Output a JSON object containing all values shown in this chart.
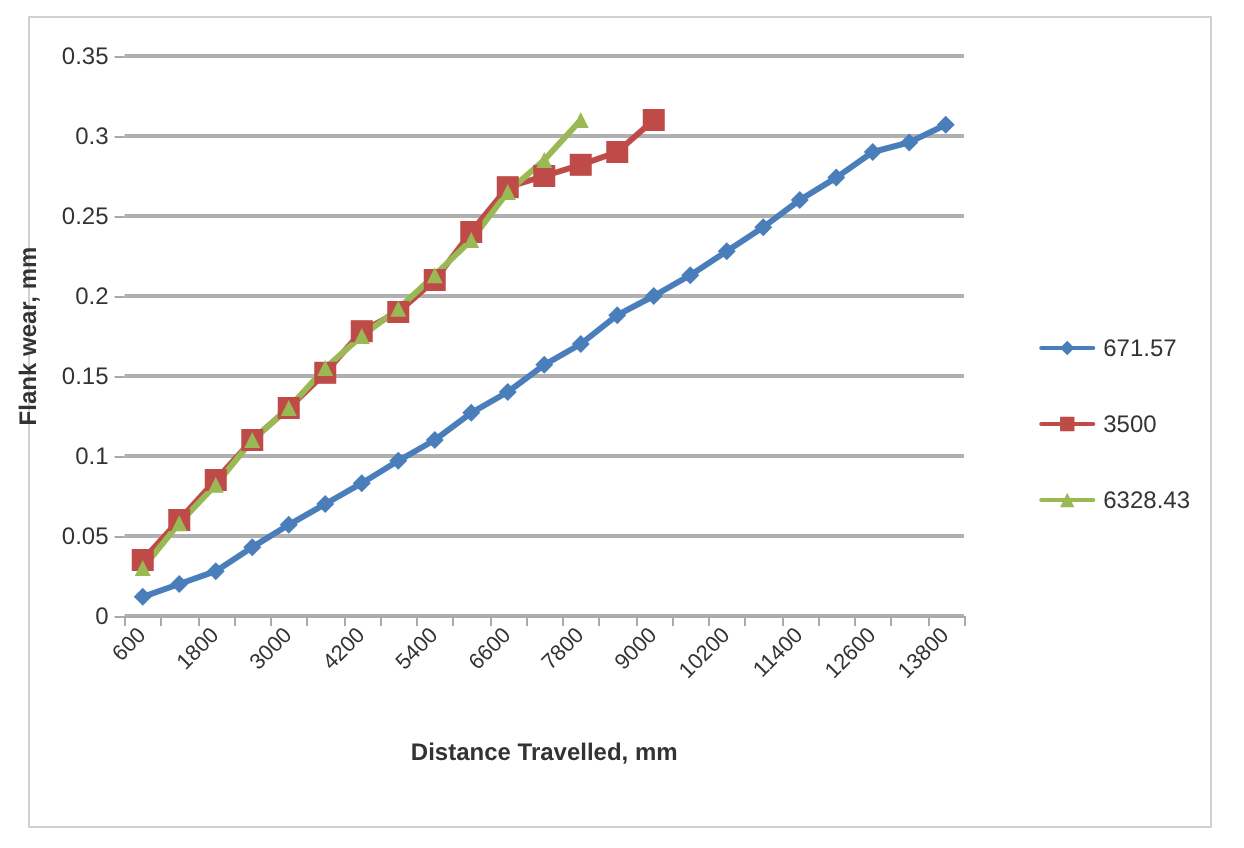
{
  "chart_data": {
    "type": "line",
    "xlabel": "Distance Travelled, mm",
    "ylabel": "Flank wear, mm",
    "categories": [
      "600",
      null,
      "1800",
      null,
      "3000",
      null,
      "4200",
      null,
      "5400",
      null,
      "6600",
      null,
      "7800",
      null,
      "9000",
      null,
      "10200",
      null,
      "11400",
      null,
      "12600",
      null,
      "13800"
    ],
    "series": [
      {
        "name": "671.57",
        "color": "#4a7ebb",
        "marker": "diamond",
        "values": [
          0.012,
          0.02,
          0.028,
          0.043,
          0.057,
          0.07,
          0.083,
          0.097,
          0.11,
          0.127,
          0.14,
          0.157,
          0.17,
          0.188,
          0.2,
          0.213,
          0.228,
          0.243,
          0.26,
          0.274,
          0.29,
          0.296,
          0.307
        ]
      },
      {
        "name": "3500",
        "color": "#be4b48",
        "marker": "square",
        "values": [
          0.035,
          0.06,
          0.085,
          0.11,
          0.13,
          0.152,
          0.178,
          0.19,
          0.21,
          0.24,
          0.268,
          0.275,
          0.282,
          0.29,
          0.31,
          null,
          null,
          null,
          null,
          null,
          null,
          null,
          null
        ]
      },
      {
        "name": "6328.43",
        "color": "#98b954",
        "marker": "triangle",
        "values": [
          0.03,
          0.058,
          0.082,
          0.11,
          0.13,
          0.155,
          0.175,
          0.192,
          0.213,
          0.235,
          0.265,
          0.285,
          0.31,
          null,
          null,
          null,
          null,
          null,
          null,
          null,
          null,
          null,
          null
        ]
      }
    ],
    "ylim": [
      0,
      0.35
    ],
    "yticks": [
      0,
      0.05,
      0.1,
      0.15,
      0.2,
      0.25,
      0.3,
      0.35
    ],
    "grid": "y",
    "legend": "right"
  }
}
